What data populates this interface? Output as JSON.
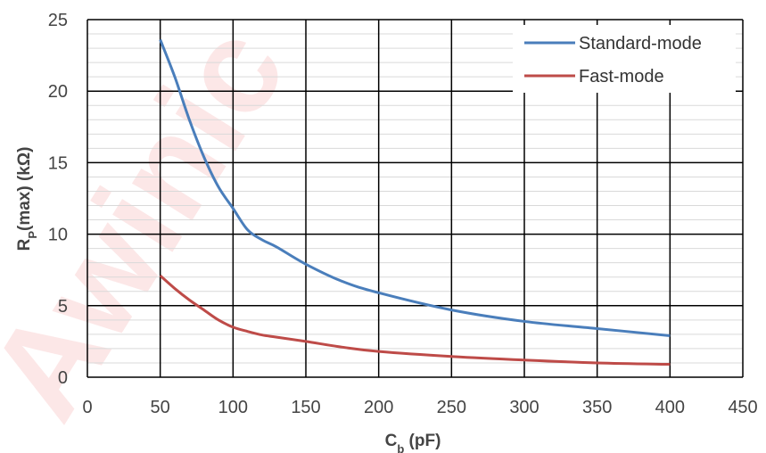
{
  "colors": {
    "standard_mode": "#4a7ebb",
    "fast_mode": "#be4b48",
    "grid_major": "#000000",
    "grid_minor": "#d9d9d9",
    "watermark": "#e63c3c"
  },
  "watermark": {
    "text": "Awinic"
  },
  "chart_data": {
    "type": "line",
    "title": "",
    "xlabel": {
      "main": "C",
      "sub": "b",
      "rest": " (pF)"
    },
    "ylabel": {
      "main": "R",
      "sub": "P",
      "rest": "(max) (kΩ)"
    },
    "xlim": [
      0,
      450
    ],
    "ylim": [
      0,
      25
    ],
    "x_ticks": [
      0,
      50,
      100,
      150,
      200,
      250,
      300,
      350,
      400,
      450
    ],
    "y_ticks": [
      0,
      5,
      10,
      15,
      20,
      25
    ],
    "grid": {
      "major": true,
      "minor_y_step": 1
    },
    "legend_position": "top-right",
    "series": [
      {
        "name": "Standard-mode",
        "color": "#4a7ebb",
        "x": [
          50,
          60,
          70,
          80,
          90,
          100,
          110,
          120,
          130,
          150,
          175,
          200,
          250,
          300,
          350,
          400
        ],
        "y": [
          23.6,
          21.0,
          18.0,
          15.4,
          13.3,
          11.8,
          10.3,
          9.6,
          9.1,
          7.9,
          6.7,
          5.9,
          4.7,
          3.9,
          3.4,
          2.9
        ]
      },
      {
        "name": "Fast-mode",
        "color": "#be4b48",
        "x": [
          50,
          60,
          70,
          80,
          90,
          100,
          110,
          120,
          130,
          150,
          175,
          200,
          250,
          300,
          350,
          400
        ],
        "y": [
          7.1,
          6.2,
          5.4,
          4.7,
          4.0,
          3.5,
          3.2,
          2.95,
          2.8,
          2.5,
          2.1,
          1.8,
          1.45,
          1.2,
          1.0,
          0.9
        ]
      }
    ]
  }
}
